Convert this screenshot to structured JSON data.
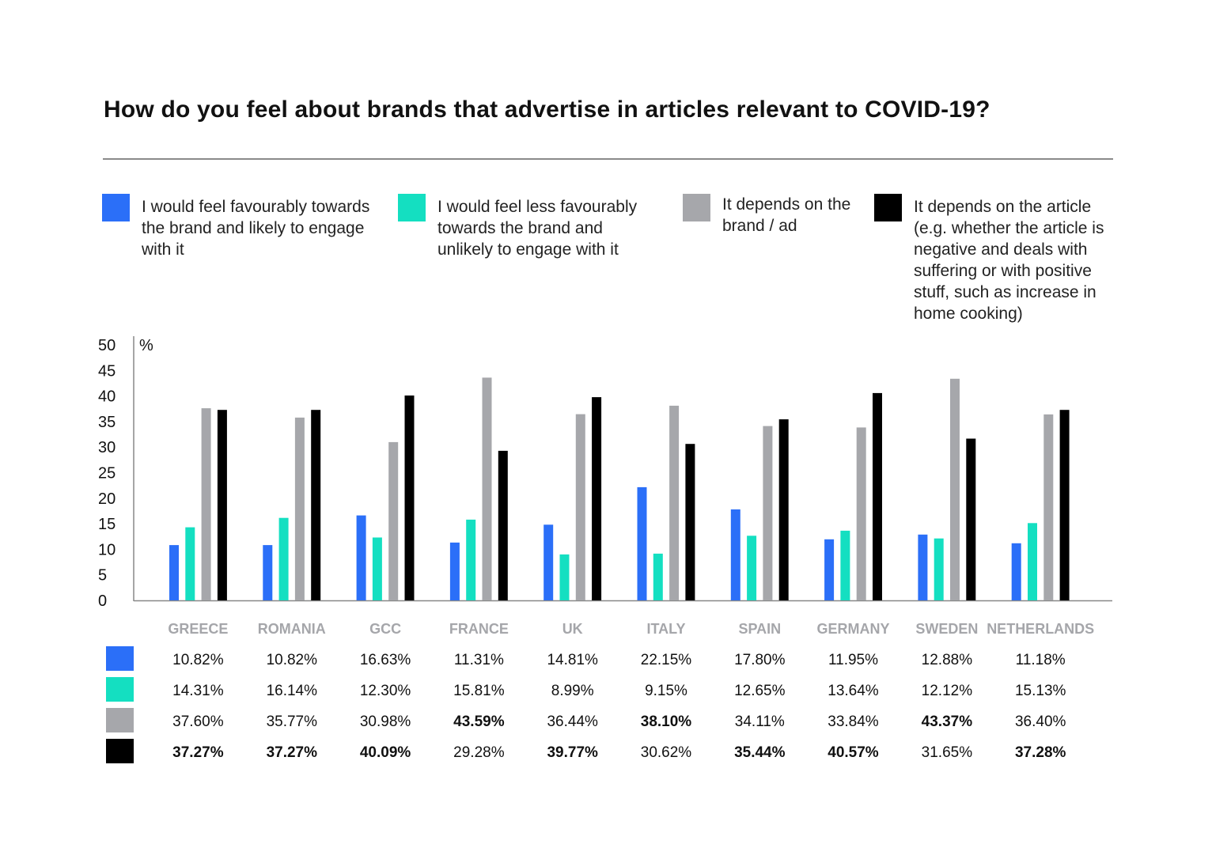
{
  "chart_data": {
    "type": "bar",
    "title": "How do you feel about brands that advertise in articles relevant to COVID-19?",
    "ylabel": "%",
    "ylim": [
      0,
      50
    ],
    "yticks": [
      0,
      5,
      10,
      15,
      20,
      25,
      30,
      35,
      40,
      45,
      50
    ],
    "grid": false,
    "legend_position": "top",
    "categories": [
      "GREECE",
      "ROMANIA",
      "GCC",
      "FRANCE",
      "UK",
      "ITALY",
      "SPAIN",
      "GERMANY",
      "SWEDEN",
      "NETHERLANDS"
    ],
    "series": [
      {
        "name": "I would feel favourably towards the brand and likely to engage with it",
        "color": "#2b6ff8",
        "values": [
          10.82,
          10.82,
          16.63,
          11.31,
          14.81,
          22.15,
          17.8,
          11.95,
          12.88,
          11.18
        ],
        "labels": [
          "10.82%",
          "10.82%",
          "16.63%",
          "11.31%",
          "14.81%",
          "22.15%",
          "17.80%",
          "11.95%",
          "12.88%",
          "11.18%"
        ]
      },
      {
        "name": "I would feel less favourably towards the brand and unlikely to engage with it",
        "color": "#14dfc1",
        "values": [
          14.31,
          16.14,
          12.3,
          15.81,
          8.99,
          9.15,
          12.65,
          13.64,
          12.12,
          15.13
        ],
        "labels": [
          "14.31%",
          "16.14%",
          "12.30%",
          "15.81%",
          "8.99%",
          "9.15%",
          "12.65%",
          "13.64%",
          "12.12%",
          "15.13%"
        ]
      },
      {
        "name": "It depends on the brand / ad",
        "color": "#a6a7ab",
        "values": [
          37.6,
          35.77,
          30.98,
          43.59,
          36.44,
          38.1,
          34.11,
          33.84,
          43.37,
          36.4
        ],
        "labels": [
          "37.60%",
          "35.77%",
          "30.98%",
          "43.59%",
          "36.44%",
          "38.10%",
          "34.11%",
          "33.84%",
          "43.37%",
          "36.40%"
        ]
      },
      {
        "name": "It depends on the article (e.g. whether the article is negative and deals with suffering or with positive stuff, such as increase in home cooking)",
        "color": "#000000",
        "values": [
          37.27,
          37.27,
          40.09,
          29.28,
          39.77,
          30.62,
          35.44,
          40.57,
          31.65,
          37.28
        ],
        "labels": [
          "37.27%",
          "37.27%",
          "40.09%",
          "29.28%",
          "39.77%",
          "30.62%",
          "35.44%",
          "40.57%",
          "31.65%",
          "37.28%"
        ]
      }
    ],
    "highlighted": [
      3,
      3,
      3,
      2,
      3,
      2,
      3,
      3,
      2,
      3
    ]
  }
}
